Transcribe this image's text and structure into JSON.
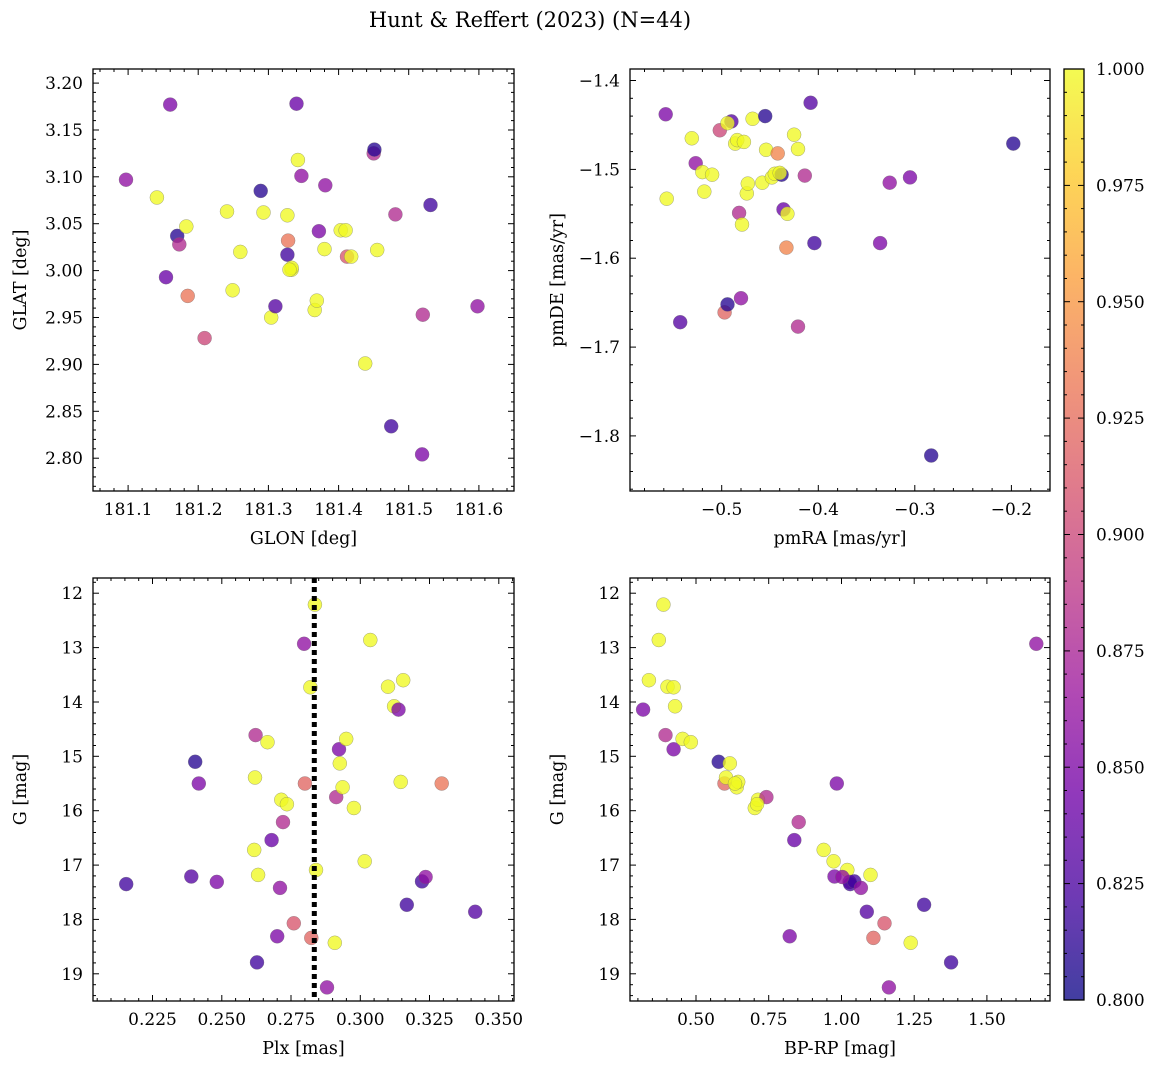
{
  "figure": {
    "title": "Hunt & Reffert (2023) (N=44)"
  },
  "colormap": {
    "name": "plasma",
    "range": [
      0.8,
      1.0
    ],
    "stops": [
      "#0d0887",
      "#46039f",
      "#7201a8",
      "#9c179e",
      "#bd3786",
      "#d8576b",
      "#ed7953",
      "#fb9f3a",
      "#fdca26",
      "#f0f921"
    ],
    "alpha": 0.78,
    "tick_values": [
      0.8,
      0.825,
      0.85,
      0.875,
      0.9,
      0.925,
      0.95,
      0.975,
      1.0
    ],
    "tick_labels": [
      "0.800",
      "0.825",
      "0.850",
      "0.875",
      "0.900",
      "0.925",
      "0.950",
      "0.975",
      "1.000"
    ]
  },
  "chart_data": [
    {
      "id": "glon-glat",
      "type": "scatter",
      "xlabel": "GLON [deg]",
      "ylabel": "GLAT [deg]",
      "xlim": [
        181.05,
        181.65
      ],
      "ylim": [
        2.765,
        3.215
      ],
      "yinvert": false,
      "xticks": [
        181.1,
        181.2,
        181.3,
        181.4,
        181.5,
        181.6
      ],
      "xtick_labels": [
        "181.1",
        "181.2",
        "181.3",
        "181.4",
        "181.5",
        "181.6"
      ],
      "yticks": [
        2.8,
        2.85,
        2.9,
        2.95,
        3.0,
        3.05,
        3.1,
        3.15,
        3.2
      ],
      "ytick_labels": [
        "2.80",
        "2.85",
        "2.90",
        "2.95",
        "3.00",
        "3.05",
        "3.10",
        "3.15",
        "3.20"
      ],
      "points": [
        [
          181.097,
          3.097,
          0.86
        ],
        [
          181.16,
          3.177,
          0.85
        ],
        [
          181.17,
          3.037,
          0.81
        ],
        [
          181.173,
          3.028,
          0.88
        ],
        [
          181.154,
          2.993,
          0.84
        ],
        [
          181.141,
          3.078,
          1.0
        ],
        [
          181.183,
          3.047,
          1.0
        ],
        [
          181.185,
          2.973,
          0.93
        ],
        [
          181.209,
          2.928,
          0.9
        ],
        [
          181.241,
          3.063,
          1.0
        ],
        [
          181.249,
          2.979,
          1.0
        ],
        [
          181.26,
          3.02,
          1.0
        ],
        [
          181.289,
          3.085,
          0.81
        ],
        [
          181.293,
          3.062,
          1.0
        ],
        [
          181.304,
          2.95,
          1.0
        ],
        [
          181.31,
          2.962,
          0.83
        ],
        [
          181.327,
          3.059,
          1.0
        ],
        [
          181.328,
          3.032,
          0.93
        ],
        [
          181.327,
          3.017,
          0.82
        ],
        [
          181.333,
          3.001,
          1.0
        ],
        [
          181.333,
          3.003,
          1.0
        ],
        [
          181.34,
          3.178,
          0.84
        ],
        [
          181.342,
          3.118,
          1.0
        ],
        [
          181.347,
          3.101,
          0.86
        ],
        [
          181.366,
          2.958,
          1.0
        ],
        [
          181.369,
          2.968,
          1.0
        ],
        [
          181.372,
          3.042,
          0.85
        ],
        [
          181.38,
          3.023,
          1.0
        ],
        [
          181.381,
          3.091,
          0.86
        ],
        [
          181.403,
          3.043,
          1.0
        ],
        [
          181.41,
          3.043,
          1.0
        ],
        [
          181.412,
          3.015,
          0.91
        ],
        [
          181.418,
          3.015,
          1.0
        ],
        [
          181.438,
          2.901,
          1.0
        ],
        [
          181.45,
          3.125,
          0.88
        ],
        [
          181.451,
          3.129,
          0.81
        ],
        [
          181.455,
          3.022,
          1.0
        ],
        [
          181.475,
          2.834,
          0.82
        ],
        [
          181.481,
          3.06,
          0.88
        ],
        [
          181.531,
          3.07,
          0.82
        ],
        [
          181.52,
          2.953,
          0.88
        ],
        [
          181.519,
          2.804,
          0.85
        ],
        [
          181.598,
          2.962,
          0.86
        ],
        [
          181.33,
          3.001,
          1.0
        ]
      ]
    },
    {
      "id": "pm",
      "type": "scatter",
      "xlabel": "pmRA [mas/yr]",
      "ylabel": "pmDE [mas/yr]",
      "xlim": [
        -0.595,
        -0.16
      ],
      "ylim": [
        -1.862,
        -1.387
      ],
      "yinvert": false,
      "xticks": [
        -0.5,
        -0.4,
        -0.3,
        -0.2
      ],
      "xtick_labels": [
        "−0.5",
        "−0.4",
        "−0.3",
        "−0.2"
      ],
      "yticks": [
        -1.8,
        -1.7,
        -1.6,
        -1.5,
        -1.4
      ],
      "ytick_labels": [
        "−1.8",
        "−1.7",
        "−1.6",
        "−1.5",
        "−1.4"
      ],
      "points": [
        [
          -0.558,
          -1.438,
          0.85
        ],
        [
          -0.557,
          -1.533,
          1.0
        ],
        [
          -0.543,
          -1.672,
          0.83
        ],
        [
          -0.531,
          -1.465,
          1.0
        ],
        [
          -0.527,
          -1.493,
          0.86
        ],
        [
          -0.52,
          -1.503,
          1.0
        ],
        [
          -0.518,
          -1.525,
          1.0
        ],
        [
          -0.51,
          -1.506,
          1.0
        ],
        [
          -0.502,
          -1.456,
          0.9
        ],
        [
          -0.497,
          -1.661,
          0.92
        ],
        [
          -0.494,
          -1.652,
          0.81
        ],
        [
          -0.49,
          -1.446,
          0.83
        ],
        [
          -0.494,
          -1.448,
          1.0
        ],
        [
          -0.486,
          -1.471,
          1.0
        ],
        [
          -0.484,
          -1.467,
          1.0
        ],
        [
          -0.482,
          -1.549,
          0.88
        ],
        [
          -0.48,
          -1.645,
          0.86
        ],
        [
          -0.479,
          -1.562,
          1.0
        ],
        [
          -0.477,
          -1.469,
          1.0
        ],
        [
          -0.474,
          -1.527,
          1.0
        ],
        [
          -0.473,
          -1.516,
          1.0
        ],
        [
          -0.468,
          -1.443,
          1.0
        ],
        [
          -0.458,
          -1.515,
          1.0
        ],
        [
          -0.454,
          -1.478,
          1.0
        ],
        [
          -0.455,
          -1.44,
          0.81
        ],
        [
          -0.448,
          -1.509,
          1.0
        ],
        [
          -0.445,
          -1.505,
          1.0
        ],
        [
          -0.442,
          -1.482,
          0.94
        ],
        [
          -0.438,
          -1.506,
          0.81
        ],
        [
          -0.436,
          -1.545,
          0.84
        ],
        [
          -0.433,
          -1.588,
          0.94
        ],
        [
          -0.432,
          -1.55,
          1.0
        ],
        [
          -0.425,
          -1.461,
          1.0
        ],
        [
          -0.421,
          -1.477,
          1.0
        ],
        [
          -0.421,
          -1.677,
          0.88
        ],
        [
          -0.414,
          -1.507,
          0.88
        ],
        [
          -0.408,
          -1.425,
          0.83
        ],
        [
          -0.404,
          -1.583,
          0.82
        ],
        [
          -0.336,
          -1.583,
          0.85
        ],
        [
          -0.326,
          -1.515,
          0.86
        ],
        [
          -0.305,
          -1.509,
          0.85
        ],
        [
          -0.283,
          -1.822,
          0.81
        ],
        [
          -0.198,
          -1.471,
          0.81
        ],
        [
          -0.44,
          -1.504,
          1.0
        ]
      ]
    },
    {
      "id": "plx-g",
      "type": "scatter",
      "xlabel": "Plx [mas]",
      "ylabel": "G [mag]",
      "xlim": [
        0.2035,
        0.3555
      ],
      "ylim": [
        11.72,
        19.5
      ],
      "yinvert": true,
      "xticks": [
        0.225,
        0.25,
        0.275,
        0.3,
        0.325,
        0.35
      ],
      "xtick_labels": [
        "0.225",
        "0.250",
        "0.275",
        "0.300",
        "0.325",
        "0.350"
      ],
      "yticks": [
        12,
        13,
        14,
        15,
        16,
        17,
        18,
        19
      ],
      "ytick_labels": [
        "12",
        "13",
        "14",
        "15",
        "16",
        "17",
        "18",
        "19"
      ],
      "vline": {
        "x": 0.2834,
        "style": "dotted"
      },
      "points": [
        [
          0.2155,
          17.35,
          0.82
        ],
        [
          0.239,
          17.21,
          0.83
        ],
        [
          0.2404,
          15.1,
          0.81
        ],
        [
          0.2417,
          15.5,
          0.85
        ],
        [
          0.2482,
          17.31,
          0.85
        ],
        [
          0.2617,
          16.72,
          1.0
        ],
        [
          0.262,
          15.39,
          1.0
        ],
        [
          0.2622,
          14.61,
          0.88
        ],
        [
          0.2631,
          17.18,
          1.0
        ],
        [
          0.2627,
          18.79,
          0.82
        ],
        [
          0.2665,
          14.74,
          1.0
        ],
        [
          0.268,
          16.54,
          0.84
        ],
        [
          0.27,
          18.31,
          0.85
        ],
        [
          0.271,
          17.42,
          0.86
        ],
        [
          0.2715,
          15.8,
          1.0
        ],
        [
          0.2721,
          16.21,
          0.88
        ],
        [
          0.2735,
          15.88,
          1.0
        ],
        [
          0.276,
          18.07,
          0.91
        ],
        [
          0.2797,
          12.93,
          0.86
        ],
        [
          0.28,
          15.5,
          0.92
        ],
        [
          0.282,
          13.73,
          1.0
        ],
        [
          0.2823,
          18.34,
          0.92
        ],
        [
          0.2836,
          12.21,
          1.0
        ],
        [
          0.284,
          17.09,
          1.0
        ],
        [
          0.288,
          19.25,
          0.86
        ],
        [
          0.2908,
          18.43,
          1.0
        ],
        [
          0.2913,
          15.75,
          0.88
        ],
        [
          0.2923,
          14.87,
          0.85
        ],
        [
          0.2926,
          15.13,
          1.0
        ],
        [
          0.2936,
          15.57,
          1.0
        ],
        [
          0.2949,
          14.68,
          1.0
        ],
        [
          0.2977,
          15.95,
          1.0
        ],
        [
          0.3016,
          16.93,
          1.0
        ],
        [
          0.3036,
          12.86,
          1.0
        ],
        [
          0.31,
          13.72,
          1.0
        ],
        [
          0.3122,
          14.08,
          1.0
        ],
        [
          0.3138,
          14.14,
          0.85
        ],
        [
          0.3146,
          15.47,
          1.0
        ],
        [
          0.3155,
          13.6,
          1.0
        ],
        [
          0.3168,
          17.73,
          0.82
        ],
        [
          0.3223,
          17.3,
          0.82
        ],
        [
          0.3236,
          17.22,
          0.86
        ],
        [
          0.3294,
          15.5,
          0.93
        ],
        [
          0.3415,
          17.86,
          0.83
        ]
      ]
    },
    {
      "id": "cmd",
      "type": "scatter",
      "xlabel": "BP-RP [mag]",
      "ylabel": "G [mag]",
      "xlim": [
        0.273,
        1.717
      ],
      "ylim": [
        11.72,
        19.5
      ],
      "yinvert": true,
      "xticks": [
        0.5,
        0.75,
        1.0,
        1.25,
        1.5
      ],
      "xtick_labels": [
        "0.50",
        "0.75",
        "1.00",
        "1.25",
        "1.50"
      ],
      "yticks": [
        12,
        13,
        14,
        15,
        16,
        17,
        18,
        19
      ],
      "ytick_labels": [
        "12",
        "13",
        "14",
        "15",
        "16",
        "17",
        "18",
        "19"
      ],
      "points": [
        [
          0.318,
          14.14,
          0.85
        ],
        [
          0.338,
          13.6,
          1.0
        ],
        [
          0.372,
          12.86,
          1.0
        ],
        [
          0.388,
          12.21,
          1.0
        ],
        [
          0.395,
          14.61,
          0.88
        ],
        [
          0.402,
          13.72,
          1.0
        ],
        [
          0.423,
          13.73,
          1.0
        ],
        [
          0.428,
          14.08,
          1.0
        ],
        [
          0.423,
          14.87,
          0.85
        ],
        [
          0.454,
          14.68,
          1.0
        ],
        [
          0.482,
          14.74,
          1.0
        ],
        [
          0.578,
          15.1,
          0.81
        ],
        [
          0.598,
          15.5,
          0.92
        ],
        [
          0.603,
          15.39,
          1.0
        ],
        [
          0.616,
          15.13,
          1.0
        ],
        [
          0.64,
          15.57,
          1.0
        ],
        [
          0.645,
          15.47,
          1.0
        ],
        [
          0.702,
          15.95,
          1.0
        ],
        [
          0.713,
          15.8,
          1.0
        ],
        [
          0.742,
          15.75,
          0.88
        ],
        [
          0.822,
          18.31,
          0.85
        ],
        [
          0.838,
          16.54,
          0.84
        ],
        [
          0.853,
          16.21,
          0.88
        ],
        [
          0.939,
          16.72,
          1.0
        ],
        [
          0.973,
          16.93,
          1.0
        ],
        [
          0.976,
          17.21,
          0.85
        ],
        [
          0.984,
          15.5,
          0.85
        ],
        [
          1.02,
          17.09,
          1.0
        ],
        [
          1.028,
          17.31,
          0.85
        ],
        [
          1.03,
          17.35,
          0.82
        ],
        [
          1.044,
          17.3,
          0.82
        ],
        [
          1.067,
          17.42,
          0.86
        ],
        [
          1.087,
          17.86,
          0.83
        ],
        [
          1.1,
          17.18,
          1.0
        ],
        [
          1.11,
          18.34,
          0.92
        ],
        [
          1.148,
          18.07,
          0.91
        ],
        [
          1.163,
          19.25,
          0.86
        ],
        [
          1.238,
          18.43,
          1.0
        ],
        [
          1.284,
          17.73,
          0.82
        ],
        [
          1.377,
          18.79,
          0.82
        ],
        [
          1.67,
          12.93,
          0.86
        ],
        [
          1.003,
          17.22,
          0.86
        ],
        [
          0.71,
          15.88,
          1.0
        ],
        [
          0.634,
          15.5,
          1.0
        ]
      ]
    }
  ]
}
